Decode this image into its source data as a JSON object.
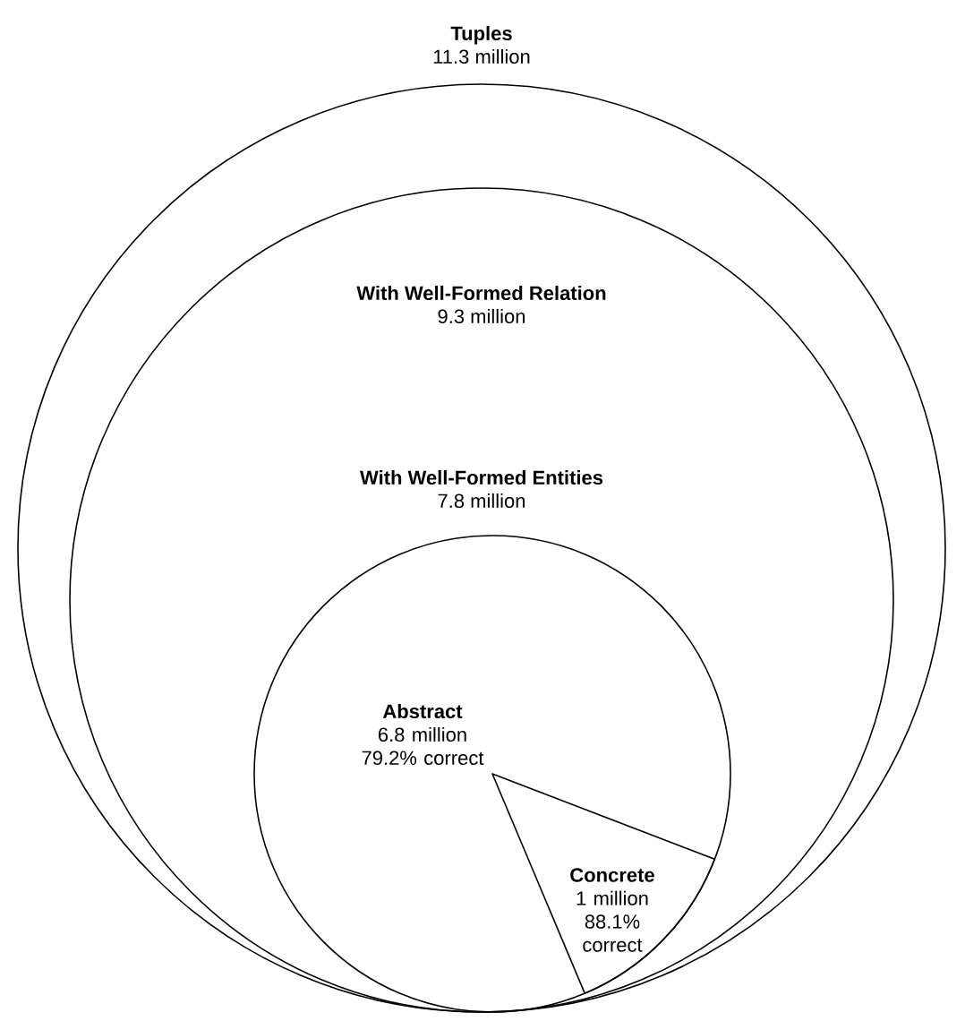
{
  "chart_data": {
    "type": "other",
    "categories": [
      "Tuples",
      "With Well-Formed Relation",
      "With Well-Formed Entities",
      "Abstract",
      "Concrete"
    ],
    "values": [
      11.3,
      9.3,
      7.8,
      6.8,
      1
    ],
    "value_labels": [
      "11.3 million",
      "9.3 million",
      "7.8 million",
      "6.8 million",
      "1 million"
    ],
    "annotations": [
      "79.2% correct",
      "88.1% correct"
    ]
  }
}
